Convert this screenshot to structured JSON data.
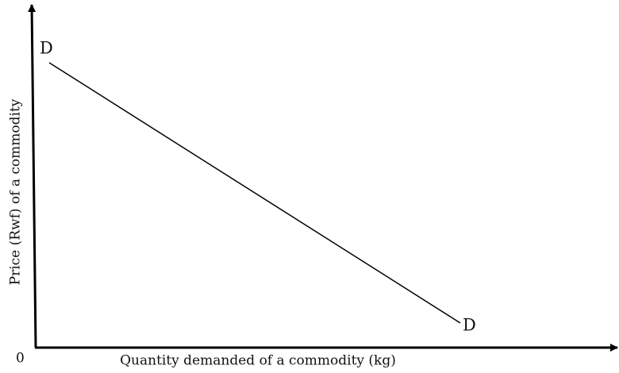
{
  "origin": "0",
  "x_axis_label": "Quantity demanded of a commodity (kg)",
  "y_axis_label": "Price (Rwf) of a commodity",
  "curve_labels": [
    "D",
    "D"
  ]
}
